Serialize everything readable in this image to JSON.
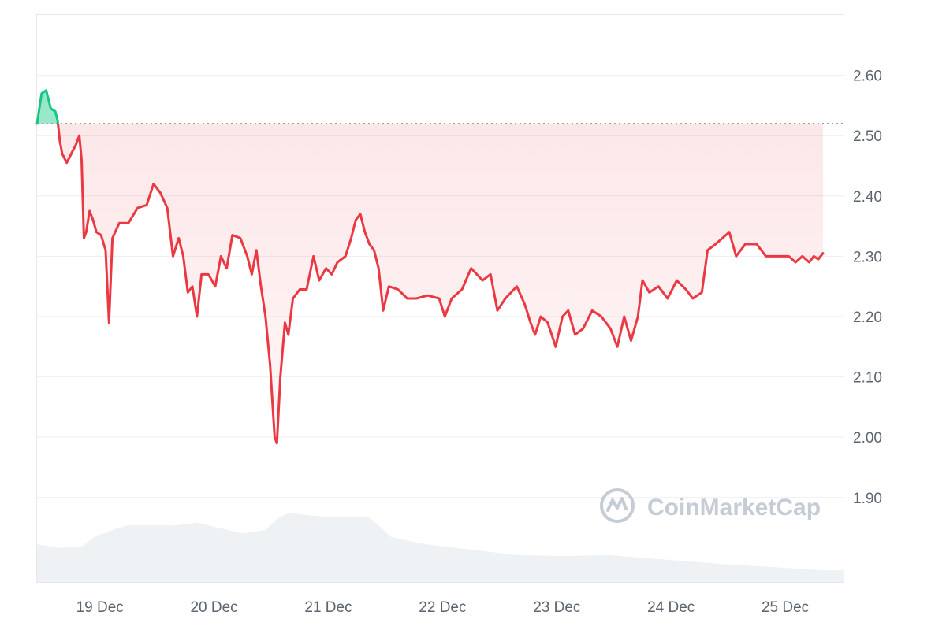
{
  "chart_data": {
    "type": "line",
    "baseline": 2.52,
    "ylim": [
      1.76,
      2.7
    ],
    "xlim": [
      0,
      7.06
    ],
    "x_ticks": [
      {
        "x": 0.55,
        "label": "19 Dec"
      },
      {
        "x": 1.55,
        "label": "20 Dec"
      },
      {
        "x": 2.55,
        "label": "21 Dec"
      },
      {
        "x": 3.55,
        "label": "22 Dec"
      },
      {
        "x": 4.55,
        "label": "23 Dec"
      },
      {
        "x": 5.55,
        "label": "24 Dec"
      },
      {
        "x": 6.55,
        "label": "25 Dec"
      }
    ],
    "y_ticks": [
      {
        "value": 1.9,
        "label": "1.90"
      },
      {
        "value": 2.0,
        "label": "2.00"
      },
      {
        "value": 2.1,
        "label": "2.10"
      },
      {
        "value": 2.2,
        "label": "2.20"
      },
      {
        "value": 2.3,
        "label": "2.30"
      },
      {
        "value": 2.4,
        "label": "2.40"
      },
      {
        "value": 2.5,
        "label": "2.50"
      },
      {
        "value": 2.6,
        "label": "2.60"
      }
    ],
    "price": [
      [
        0.0,
        2.52
      ],
      [
        0.04,
        2.57
      ],
      [
        0.08,
        2.575
      ],
      [
        0.12,
        2.545
      ],
      [
        0.16,
        2.54
      ],
      [
        0.18,
        2.525
      ],
      [
        0.2,
        2.49
      ],
      [
        0.22,
        2.47
      ],
      [
        0.26,
        2.455
      ],
      [
        0.3,
        2.47
      ],
      [
        0.34,
        2.485
      ],
      [
        0.37,
        2.5
      ],
      [
        0.39,
        2.46
      ],
      [
        0.41,
        2.33
      ],
      [
        0.43,
        2.34
      ],
      [
        0.46,
        2.375
      ],
      [
        0.49,
        2.36
      ],
      [
        0.52,
        2.34
      ],
      [
        0.56,
        2.335
      ],
      [
        0.6,
        2.31
      ],
      [
        0.63,
        2.19
      ],
      [
        0.66,
        2.33
      ],
      [
        0.72,
        2.355
      ],
      [
        0.8,
        2.355
      ],
      [
        0.88,
        2.38
      ],
      [
        0.96,
        2.385
      ],
      [
        1.02,
        2.42
      ],
      [
        1.08,
        2.405
      ],
      [
        1.14,
        2.38
      ],
      [
        1.19,
        2.3
      ],
      [
        1.24,
        2.33
      ],
      [
        1.28,
        2.3
      ],
      [
        1.32,
        2.24
      ],
      [
        1.36,
        2.25
      ],
      [
        1.4,
        2.2
      ],
      [
        1.44,
        2.27
      ],
      [
        1.5,
        2.27
      ],
      [
        1.56,
        2.25
      ],
      [
        1.61,
        2.3
      ],
      [
        1.66,
        2.28
      ],
      [
        1.71,
        2.335
      ],
      [
        1.78,
        2.33
      ],
      [
        1.84,
        2.3
      ],
      [
        1.88,
        2.27
      ],
      [
        1.92,
        2.31
      ],
      [
        1.96,
        2.25
      ],
      [
        2.0,
        2.2
      ],
      [
        2.04,
        2.12
      ],
      [
        2.08,
        2.0
      ],
      [
        2.1,
        1.99
      ],
      [
        2.13,
        2.1
      ],
      [
        2.17,
        2.19
      ],
      [
        2.2,
        2.17
      ],
      [
        2.24,
        2.23
      ],
      [
        2.3,
        2.245
      ],
      [
        2.36,
        2.245
      ],
      [
        2.42,
        2.3
      ],
      [
        2.47,
        2.26
      ],
      [
        2.53,
        2.28
      ],
      [
        2.58,
        2.27
      ],
      [
        2.63,
        2.29
      ],
      [
        2.7,
        2.3
      ],
      [
        2.75,
        2.33
      ],
      [
        2.79,
        2.36
      ],
      [
        2.83,
        2.37
      ],
      [
        2.87,
        2.34
      ],
      [
        2.91,
        2.32
      ],
      [
        2.95,
        2.31
      ],
      [
        2.99,
        2.28
      ],
      [
        3.03,
        2.21
      ],
      [
        3.08,
        2.25
      ],
      [
        3.16,
        2.245
      ],
      [
        3.24,
        2.23
      ],
      [
        3.32,
        2.23
      ],
      [
        3.42,
        2.235
      ],
      [
        3.52,
        2.23
      ],
      [
        3.57,
        2.2
      ],
      [
        3.63,
        2.23
      ],
      [
        3.72,
        2.245
      ],
      [
        3.8,
        2.28
      ],
      [
        3.9,
        2.26
      ],
      [
        3.97,
        2.27
      ],
      [
        4.03,
        2.21
      ],
      [
        4.1,
        2.23
      ],
      [
        4.2,
        2.25
      ],
      [
        4.27,
        2.22
      ],
      [
        4.32,
        2.19
      ],
      [
        4.36,
        2.17
      ],
      [
        4.41,
        2.2
      ],
      [
        4.47,
        2.19
      ],
      [
        4.54,
        2.15
      ],
      [
        4.6,
        2.2
      ],
      [
        4.65,
        2.21
      ],
      [
        4.71,
        2.17
      ],
      [
        4.78,
        2.18
      ],
      [
        4.86,
        2.21
      ],
      [
        4.94,
        2.2
      ],
      [
        5.02,
        2.18
      ],
      [
        5.08,
        2.15
      ],
      [
        5.14,
        2.2
      ],
      [
        5.2,
        2.16
      ],
      [
        5.26,
        2.2
      ],
      [
        5.3,
        2.26
      ],
      [
        5.36,
        2.24
      ],
      [
        5.44,
        2.25
      ],
      [
        5.52,
        2.23
      ],
      [
        5.6,
        2.26
      ],
      [
        5.68,
        2.245
      ],
      [
        5.74,
        2.23
      ],
      [
        5.82,
        2.24
      ],
      [
        5.87,
        2.31
      ],
      [
        5.94,
        2.32
      ],
      [
        6.0,
        2.33
      ],
      [
        6.06,
        2.34
      ],
      [
        6.12,
        2.3
      ],
      [
        6.2,
        2.32
      ],
      [
        6.3,
        2.32
      ],
      [
        6.38,
        2.3
      ],
      [
        6.48,
        2.3
      ],
      [
        6.58,
        2.3
      ],
      [
        6.64,
        2.29
      ],
      [
        6.7,
        2.3
      ],
      [
        6.76,
        2.29
      ],
      [
        6.8,
        2.3
      ],
      [
        6.84,
        2.295
      ],
      [
        6.88,
        2.305
      ]
    ],
    "volume": [
      [
        0.0,
        0.42
      ],
      [
        0.2,
        0.38
      ],
      [
        0.4,
        0.4
      ],
      [
        0.5,
        0.5
      ],
      [
        0.7,
        0.6
      ],
      [
        0.8,
        0.63
      ],
      [
        1.2,
        0.63
      ],
      [
        1.4,
        0.66
      ],
      [
        1.6,
        0.6
      ],
      [
        1.8,
        0.54
      ],
      [
        2.0,
        0.58
      ],
      [
        2.1,
        0.7
      ],
      [
        2.2,
        0.77
      ],
      [
        2.4,
        0.74
      ],
      [
        2.6,
        0.72
      ],
      [
        2.9,
        0.72
      ],
      [
        3.0,
        0.62
      ],
      [
        3.1,
        0.5
      ],
      [
        3.4,
        0.42
      ],
      [
        3.8,
        0.36
      ],
      [
        4.2,
        0.3
      ],
      [
        4.6,
        0.29
      ],
      [
        5.0,
        0.3
      ],
      [
        5.4,
        0.26
      ],
      [
        6.0,
        0.2
      ],
      [
        6.4,
        0.17
      ],
      [
        6.88,
        0.13
      ]
    ],
    "watermark": "CoinMarketCap",
    "colors": {
      "up": "#16c784",
      "down": "#ea3943",
      "grid": "#eeeeee",
      "baseline": "#8a9099",
      "volume": "#eff2f5",
      "watermark": "#c5ccd6",
      "tick_text": "#5c6470"
    },
    "grid": true
  }
}
